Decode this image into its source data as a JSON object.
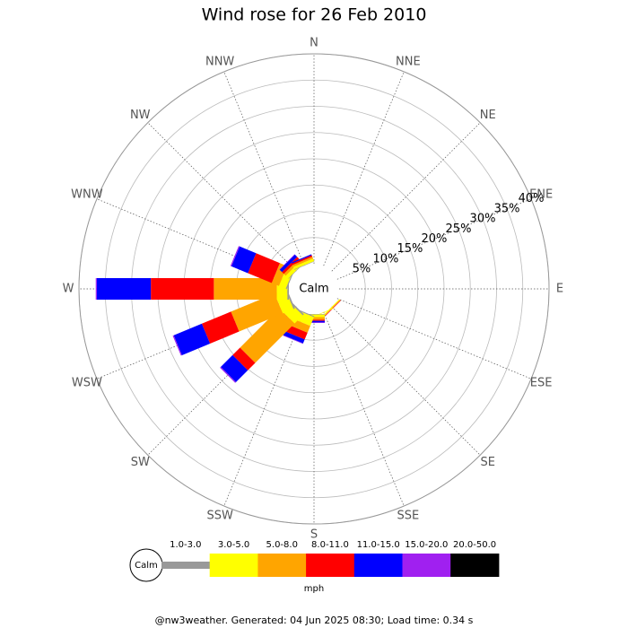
{
  "chart_data": {
    "type": "wind-rose",
    "title": "Wind rose for 26 Feb 2010",
    "calm_label": "Calm",
    "directions": [
      "N",
      "NNE",
      "NE",
      "ENE",
      "E",
      "ESE",
      "SE",
      "SSE",
      "S",
      "SSW",
      "SW",
      "WSW",
      "W",
      "WNW",
      "NW",
      "NNW"
    ],
    "series": [
      {
        "name": "1.0-3.0",
        "color": "#999999",
        "values": [
          0,
          0,
          0,
          0,
          0,
          0,
          0,
          0,
          0.1,
          0.2,
          0.3,
          0.3,
          0.3,
          0.2,
          0.1,
          0.1
        ]
      },
      {
        "name": "3.0-5.0",
        "color": "#ffff00",
        "values": [
          0,
          0,
          0,
          0,
          0,
          0,
          0.2,
          0.1,
          0.5,
          1.8,
          2.2,
          2.2,
          2.0,
          1.4,
          0.7,
          0.5
        ]
      },
      {
        "name": "5.0-8.0",
        "color": "#ffa500",
        "values": [
          0,
          0,
          0,
          0,
          0,
          0,
          0.1,
          0,
          0.5,
          1.4,
          10.6,
          9.0,
          12.0,
          1.5,
          0.5,
          0.4
        ]
      },
      {
        "name": "8.0-11.0",
        "color": "#ff0000",
        "values": [
          0,
          0,
          0,
          0,
          0,
          0,
          0.1,
          0,
          0.2,
          1.4,
          2.0,
          6.0,
          12.0,
          4.9,
          0.5,
          0.3
        ]
      },
      {
        "name": "11.0-15.0",
        "color": "#0000ff",
        "values": [
          0,
          0,
          0,
          0,
          0,
          0,
          0,
          0,
          0.3,
          0.8,
          3.2,
          5.8,
          10.3,
          3.4,
          0.6,
          0.2
        ]
      },
      {
        "name": "15.0-20.0",
        "color": "#a020f0",
        "values": [
          0,
          0,
          0,
          0,
          0,
          0,
          0,
          0,
          0.1,
          0.1,
          0.2,
          0.2,
          0.2,
          0.2,
          0.1,
          0
        ]
      },
      {
        "name": "20.0-50.0",
        "color": "#000000",
        "values": [
          0,
          0,
          0,
          0,
          0,
          0,
          0,
          0,
          0,
          0,
          0,
          0,
          0,
          0,
          0,
          0
        ]
      }
    ],
    "rlim": [
      0,
      40
    ],
    "rticks": [
      {
        "value": 5,
        "label": "5%"
      },
      {
        "value": 10,
        "label": "10%"
      },
      {
        "value": 15,
        "label": "15%"
      },
      {
        "value": 20,
        "label": "20%"
      },
      {
        "value": 25,
        "label": "25%"
      },
      {
        "value": 30,
        "label": "30%"
      },
      {
        "value": 35,
        "label": "35%"
      },
      {
        "value": 40,
        "label": "40%"
      }
    ],
    "legend_unit": "mph",
    "footer": "@nw3weather. Generated: 04 Jun 2025 08:30; Load time: 0.34 s"
  }
}
